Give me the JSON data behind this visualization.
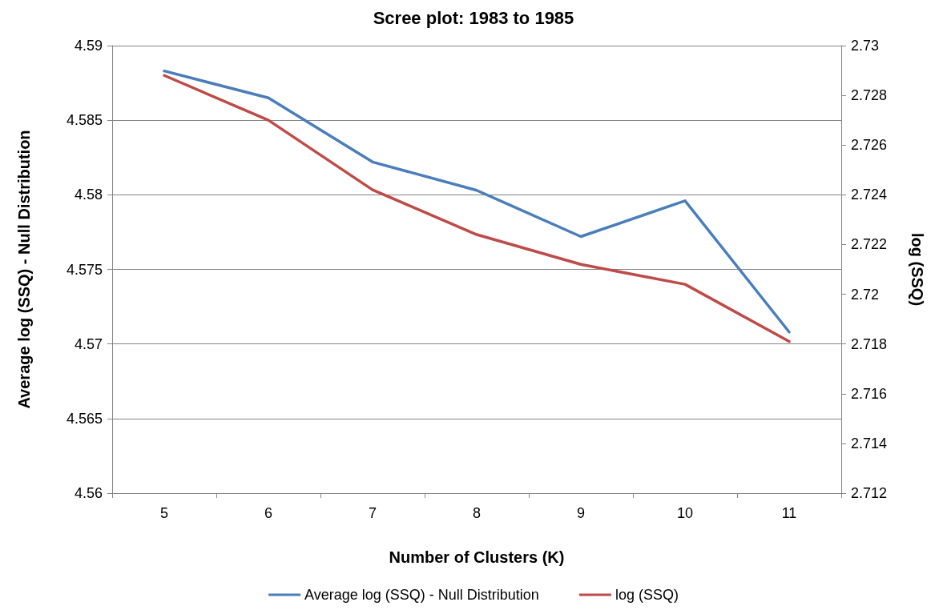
{
  "chart_data": {
    "type": "line",
    "title": "Scree plot: 1983 to 1985",
    "xlabel": "Number of Clusters (K)",
    "ylabel": "Average log (SSQ) - Null Distribution",
    "y2label": "log (SSQ)",
    "categories": [
      "5",
      "6",
      "7",
      "8",
      "9",
      "10",
      "11"
    ],
    "series": [
      {
        "name": "Average log (SSQ) - Null Distribution",
        "color": "#4a7ebb",
        "values": [
          4.5883,
          4.5865,
          4.5822,
          4.5803,
          4.5772,
          4.5796,
          4.5708
        ]
      },
      {
        "name": "log (SSQ)",
        "color": "#be4b48",
        "axis": "y2",
        "values": [
          2.7288,
          2.727,
          2.7242,
          2.7224,
          2.7212,
          2.7204,
          2.7181
        ]
      }
    ],
    "ylim": [
      4.56,
      4.59
    ],
    "yticks": [
      4.56,
      4.565,
      4.57,
      4.575,
      4.58,
      4.585,
      4.59
    ],
    "y2lim": [
      2.712,
      2.73
    ],
    "y2ticks": [
      2.712,
      2.714,
      2.716,
      2.718,
      2.72,
      2.722,
      2.724,
      2.726,
      2.728,
      2.73
    ],
    "grid": "y",
    "legend": "bottom",
    "marker": "none",
    "line_style": "solid"
  }
}
